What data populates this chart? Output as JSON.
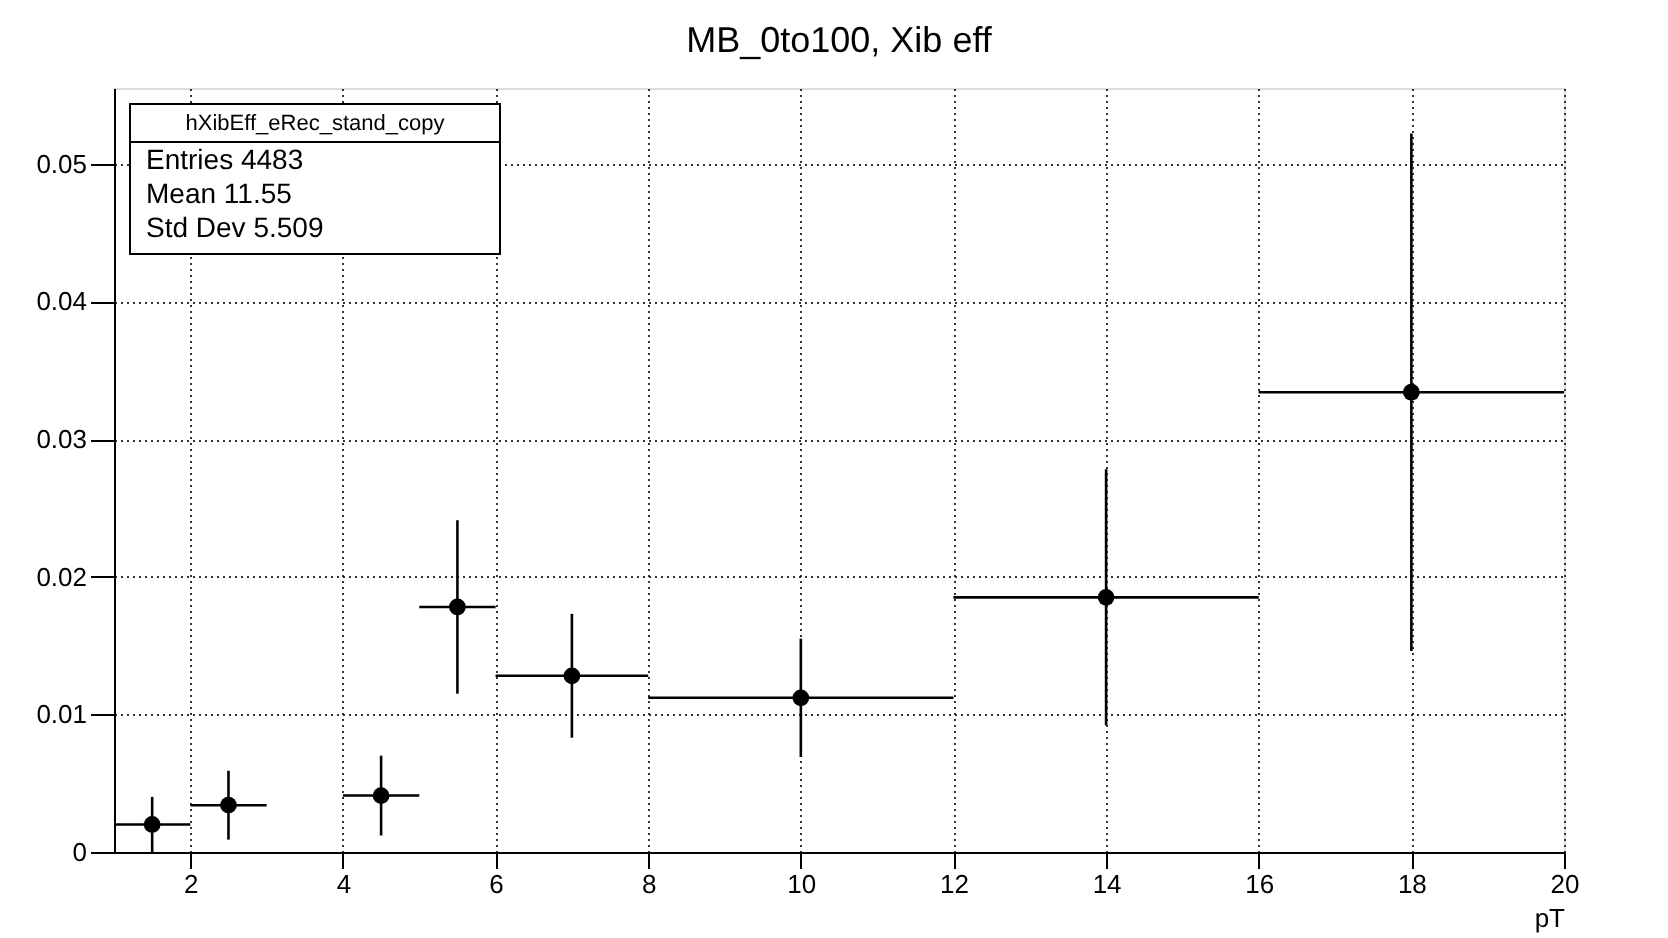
{
  "chart_data": {
    "type": "scatter",
    "title": "MB_0to100, Xib eff",
    "xlabel": "pT",
    "x": [
      1.5,
      2.5,
      4.5,
      5.5,
      7,
      10,
      14,
      18
    ],
    "values": [
      0.002,
      0.0034,
      0.0041,
      0.0178,
      0.0128,
      0.0112,
      0.0185,
      0.0334
    ],
    "errors": [
      0.002,
      0.0025,
      0.0029,
      0.0063,
      0.0045,
      0.0043,
      0.0093,
      0.0188
    ],
    "xerrors": [
      0.5,
      0.5,
      0.5,
      0.5,
      1,
      2,
      2,
      2
    ],
    "color": "#000000",
    "marker": "circle",
    "grid": true,
    "xlim": [
      1,
      20
    ],
    "xticks": [
      2,
      4,
      6,
      8,
      10,
      12,
      14,
      16,
      18,
      20
    ],
    "ylim": [
      0,
      0.0555
    ],
    "yticks": [
      0,
      0.01,
      0.02,
      0.03,
      0.04,
      0.05
    ],
    "annotations": [
      "hXibEff_eRec_stand_copy",
      "Entries 4483",
      "Mean 11.55",
      "Std Dev 5.509"
    ]
  }
}
